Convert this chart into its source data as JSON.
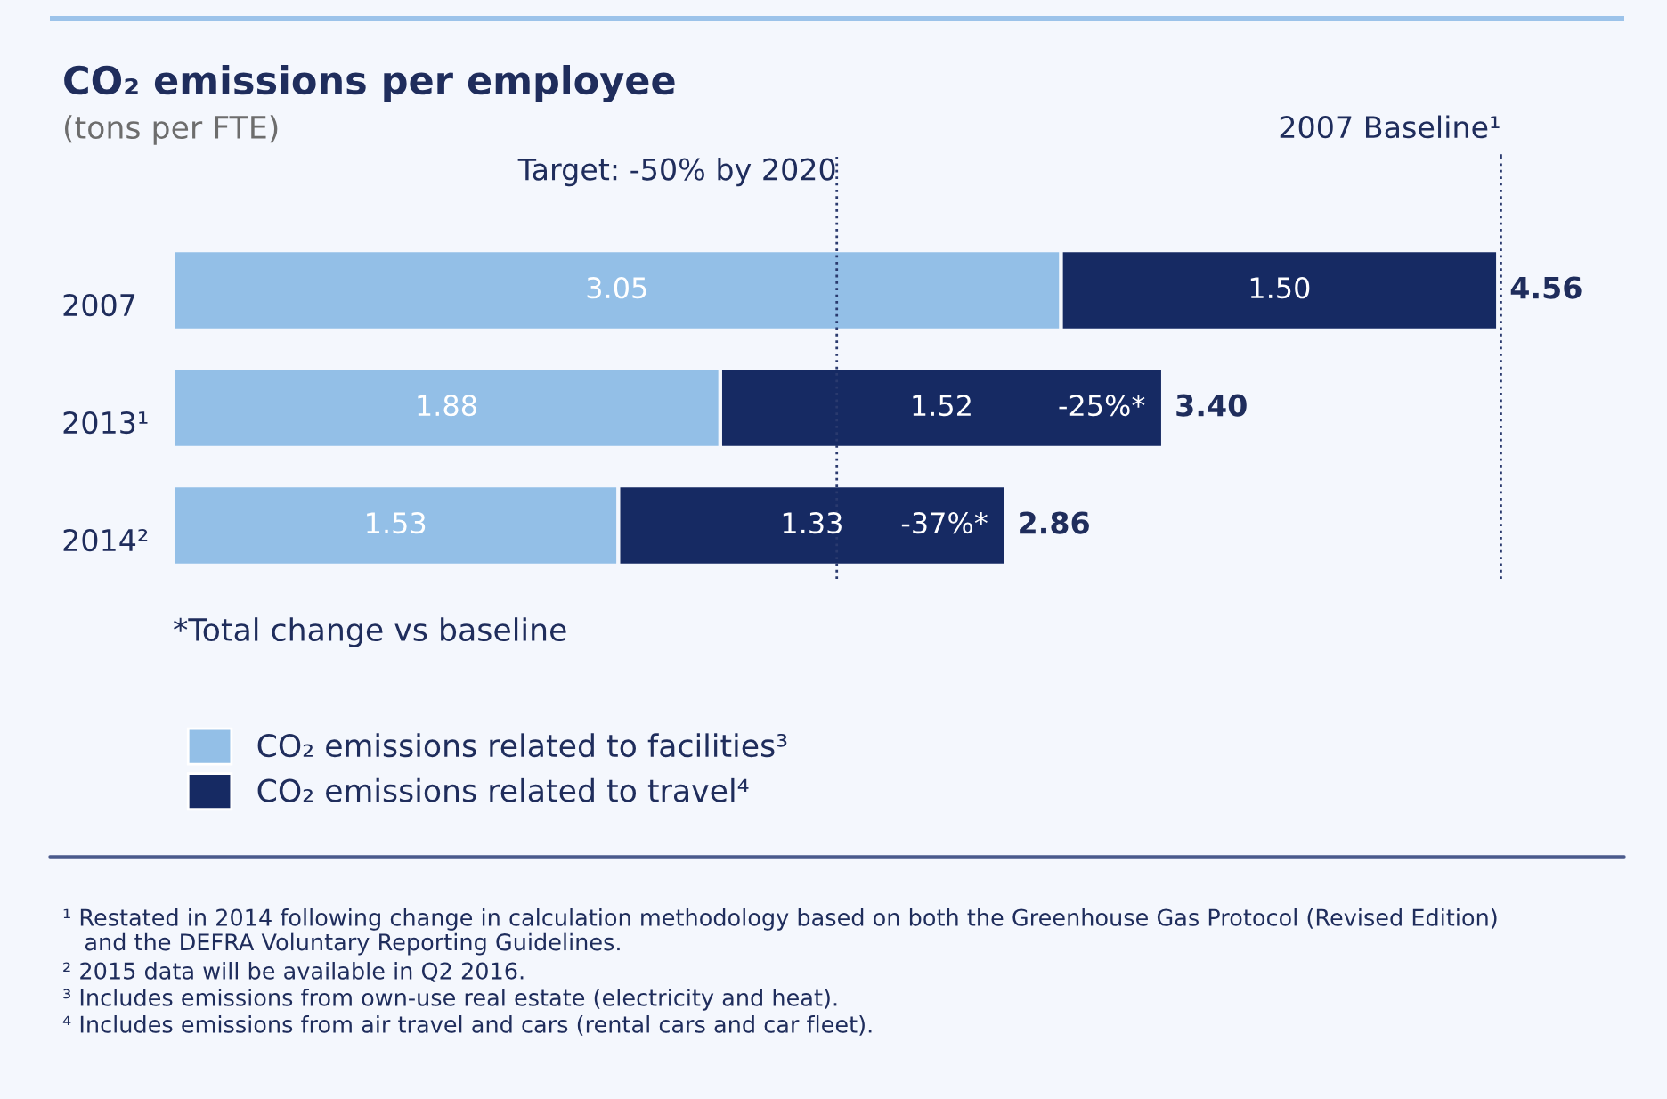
{
  "chart_data": {
    "type": "bar",
    "orientation": "horizontal",
    "stacked": true,
    "title": "CO₂ emissions per employee",
    "subtitle": "(tons per FTE)",
    "categories": [
      "2007",
      "2013¹",
      "2014²"
    ],
    "series": [
      {
        "name": "CO₂ emissions related to facilities³",
        "color": "#93bfe7",
        "values": [
          3.05,
          1.88,
          1.53
        ],
        "value_labels": [
          "3.05",
          "1.88",
          "1.53"
        ]
      },
      {
        "name": "CO₂ emissions related to travel⁴",
        "color": "#162a63",
        "values": [
          1.5,
          1.52,
          1.33
        ],
        "value_labels": [
          "1.50",
          "1.52",
          "1.33"
        ]
      }
    ],
    "totals": [
      "4.56",
      "3.40",
      "2.86"
    ],
    "tick_labels": "y",
    "grid": false,
    "legend": "bottom",
    "ref_lines": [
      {
        "axis": "x",
        "value": 4.56,
        "label": "2007 Baseline¹",
        "color": "#2a3a6e",
        "line_style": "dotted"
      },
      {
        "axis": "x",
        "value": 2.28,
        "color": "#2a3a6e",
        "line_style": "dotted"
      }
    ],
    "annotations": [
      "Target: -50% by 2020",
      {
        "text": "-25%*",
        "x": 3.4,
        "y": "2013¹"
      },
      {
        "text": "-37%*",
        "x": 2.86,
        "y": "2014²"
      },
      "*Total change vs baseline",
      "¹ Restated in 2014 following change in calculation methodology based on both the Greenhouse Gas Protocol (Revised Edition)\n   and the DEFRA Voluntary Reporting Guidelines.",
      "² 2015 data will be available in Q2 2016.",
      "³ Includes emissions from own-use real estate (electricity and heat).",
      "⁴ Includes emissions from air travel and cars (rental cars and car fleet)."
    ]
  }
}
